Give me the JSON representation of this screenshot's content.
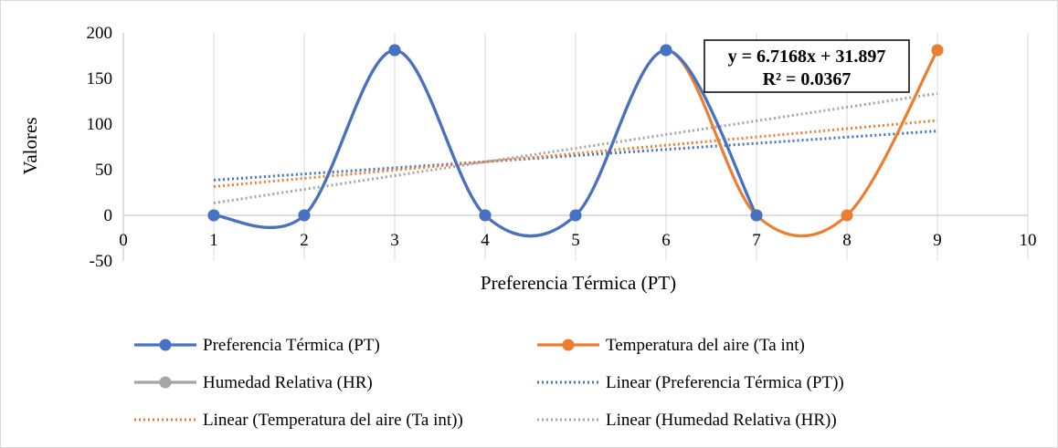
{
  "chart_data": {
    "type": "line",
    "title": "",
    "xlabel": "Preferencia  Térmica (PT)",
    "ylabel": "Valores",
    "xlim": [
      0,
      10
    ],
    "ylim": [
      -50,
      200
    ],
    "x_ticks": [
      "0",
      "1",
      "2",
      "3",
      "4",
      "5",
      "6",
      "7",
      "8",
      "9",
      "10"
    ],
    "y_ticks": [
      "200",
      "150",
      "100",
      "50",
      "0",
      "-50"
    ],
    "grid": "vertical",
    "legend_position": "bottom",
    "series": [
      {
        "name": "Preferencia Térmica (PT)",
        "color": "#4472C4",
        "style": "smooth-marker",
        "x": [
          1,
          2,
          3,
          4,
          5,
          6,
          7
        ],
        "y": [
          0,
          0,
          181,
          0,
          0,
          181,
          0
        ]
      },
      {
        "name": "Temperatura del aire (Ta int)",
        "color": "#ED7D31",
        "style": "smooth-marker",
        "x": [
          1,
          2,
          3,
          4,
          5,
          6,
          7,
          8,
          9
        ],
        "y": [
          0,
          0,
          181,
          0,
          0,
          181,
          0,
          0,
          181
        ]
      },
      {
        "name": "Humedad Relativa  (HR)",
        "color": "#A5A5A5",
        "style": "smooth-marker",
        "x": [
          1,
          2,
          3,
          4,
          5,
          6,
          7,
          8,
          9
        ],
        "y": [
          0,
          0,
          181,
          0,
          0,
          181,
          0,
          null,
          181
        ]
      },
      {
        "name": "Linear (Preferencia Térmica (PT))",
        "color": "#4472C4",
        "style": "dotted-trend",
        "x": [
          1,
          9
        ],
        "y": [
          38.6,
          92.4
        ]
      },
      {
        "name": "Linear (Temperatura del aire (Ta int))",
        "color": "#ED7D31",
        "style": "dotted-trend",
        "x": [
          1,
          9
        ],
        "y": [
          31.5,
          104
        ]
      },
      {
        "name": "Linear (Humedad Relativa  (HR))",
        "color": "#A5A5A5",
        "style": "dotted-trend",
        "x": [
          1,
          9
        ],
        "y": [
          13.5,
          133.5
        ]
      }
    ],
    "annotation": {
      "line1": "y = 6.7168x + 31.897",
      "line2": "R² = 0.0367"
    }
  }
}
